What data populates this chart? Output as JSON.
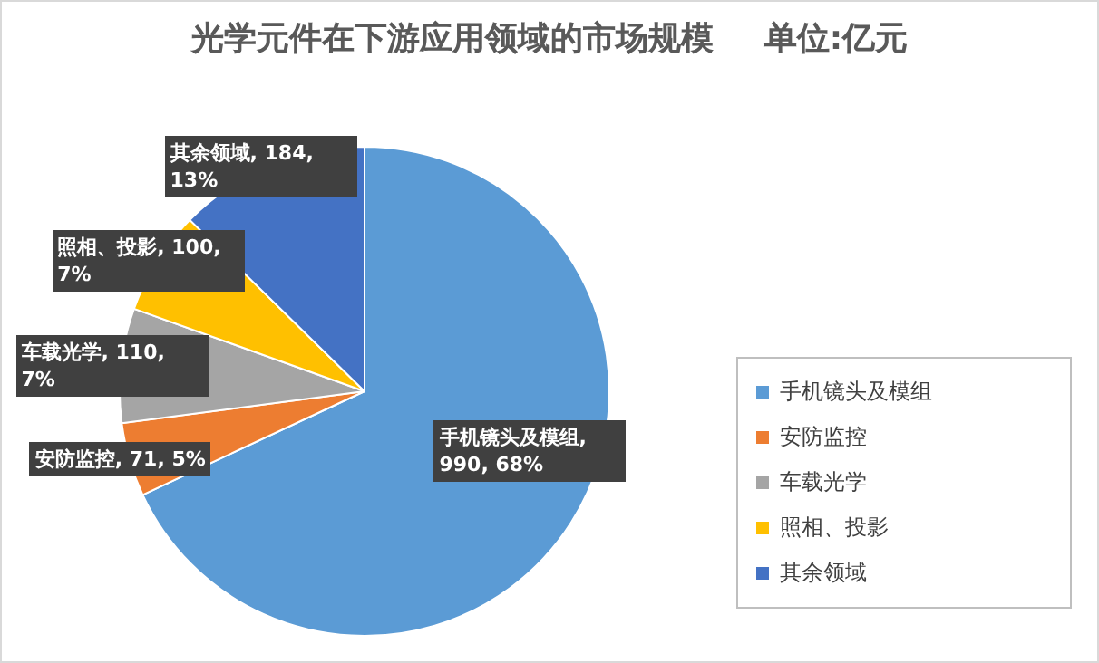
{
  "chart_data": {
    "type": "pie",
    "title": "光学元件在下游应用领域的市场规模",
    "subtitle": "单位:亿元",
    "categories": [
      "手机镜头及模组",
      "安防监控",
      "车载光学",
      "照相、投影",
      "其余领域"
    ],
    "values": [
      990,
      71,
      110,
      100,
      184
    ],
    "colors": [
      "#5b9bd5",
      "#ed7d31",
      "#a5a5a5",
      "#ffc000",
      "#4472c4"
    ],
    "value_labels": [
      "手机镜头及模组, 990, 68%",
      "安防监控, 71, 5%",
      "车载光学, 110, 7%",
      "照相、投影, 100, 7%",
      "其余领域, 184, 13%"
    ],
    "legend": "right"
  }
}
